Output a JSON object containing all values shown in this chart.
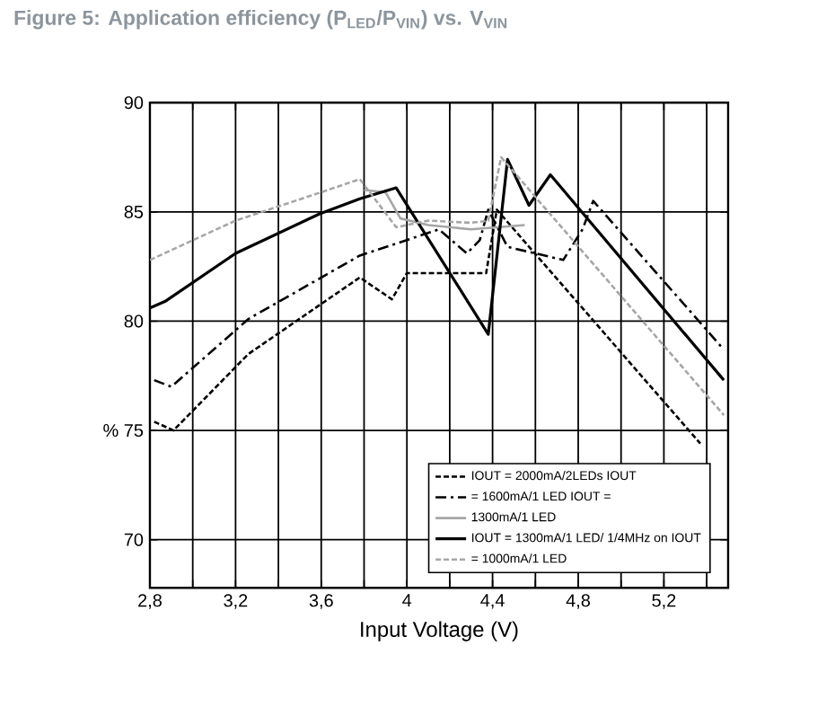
{
  "chart_data": {
    "type": "line",
    "title": "Figure 5: Application efficiency (P$_{LED}$/P$_{VIN}$) vs. V$_{VIN}$",
    "xlabel": "Input Voltage (V)",
    "xlim": [
      2.8,
      5.5
    ],
    "ylim": [
      67.8,
      90
    ],
    "xticks": [
      {
        "value": 2.8,
        "label": "2,8"
      },
      {
        "value": 3.0,
        "label": null
      },
      {
        "value": 3.2,
        "label": "3,2"
      },
      {
        "value": 3.4,
        "label": null
      },
      {
        "value": 3.6,
        "label": "3,6"
      },
      {
        "value": 3.8,
        "label": null
      },
      {
        "value": 4.0,
        "label": "4"
      },
      {
        "value": 4.2,
        "label": null
      },
      {
        "value": 4.4,
        "label": "4,4"
      },
      {
        "value": 4.6,
        "label": null
      },
      {
        "value": 4.8,
        "label": "4,8"
      },
      {
        "value": 5.0,
        "label": null
      },
      {
        "value": 5.2,
        "label": "5,2"
      },
      {
        "value": 5.4,
        "label": null
      }
    ],
    "yticks": [
      70,
      {
        "value": 75,
        "label": "% 75"
      },
      80,
      85,
      90
    ],
    "grid": true,
    "legend": "bottom right",
    "series": [
      {
        "name": "IOUT = 2000mA/2LEDs  IOUT",
        "color": "#000000",
        "line_style": "dashed",
        "x": [
          2.82,
          2.91,
          3.26,
          3.78,
          3.93,
          4.0,
          4.37,
          4.42,
          5.37
        ],
        "values": [
          75.4,
          75.0,
          78.5,
          82.0,
          81.0,
          82.2,
          82.2,
          85.1,
          74.4
        ]
      },
      {
        "name": "= 1600mA/1  LED   IOUT =",
        "color": "#000000",
        "line_style": "dashdot",
        "x": [
          2.82,
          2.9,
          3.26,
          3.78,
          4.15,
          4.28,
          4.34,
          4.38,
          4.47,
          4.73,
          4.82,
          4.87,
          5.48
        ],
        "values": [
          77.3,
          77.0,
          80.1,
          83.0,
          84.2,
          83.1,
          83.7,
          85.1,
          83.4,
          82.8,
          84.2,
          85.5,
          78.7
        ]
      },
      {
        "name": "1300mA/1 LED",
        "color": "#a6a6a6",
        "line_style": "solid",
        "x": [
          3.8,
          3.9,
          3.97,
          4.1,
          4.2,
          4.3,
          4.55
        ],
        "values": [
          86.0,
          85.9,
          84.7,
          84.4,
          84.3,
          84.2,
          84.4
        ]
      },
      {
        "name": "IOUT = 1300mA/1 LED/ 1/4MHz on   IOUT",
        "color": "#000000",
        "line_style": "solid",
        "x": [
          2.8,
          2.87,
          3.2,
          3.59,
          3.78,
          3.95,
          4.38,
          4.47,
          4.57,
          4.67,
          5.48
        ],
        "values": [
          80.6,
          80.9,
          83.1,
          84.9,
          85.6,
          86.1,
          79.4,
          87.4,
          85.3,
          86.7,
          77.3
        ]
      },
      {
        "name": "= 1000mA/1 LED",
        "color": "#a6a6a6",
        "line_style": "dashed",
        "x": [
          2.8,
          3.2,
          3.6,
          3.78,
          3.95,
          4.1,
          4.3,
          4.38,
          4.44,
          5.48
        ],
        "values": [
          82.8,
          84.6,
          85.9,
          86.5,
          84.3,
          84.6,
          84.5,
          84.6,
          87.5,
          75.7
        ]
      }
    ]
  }
}
